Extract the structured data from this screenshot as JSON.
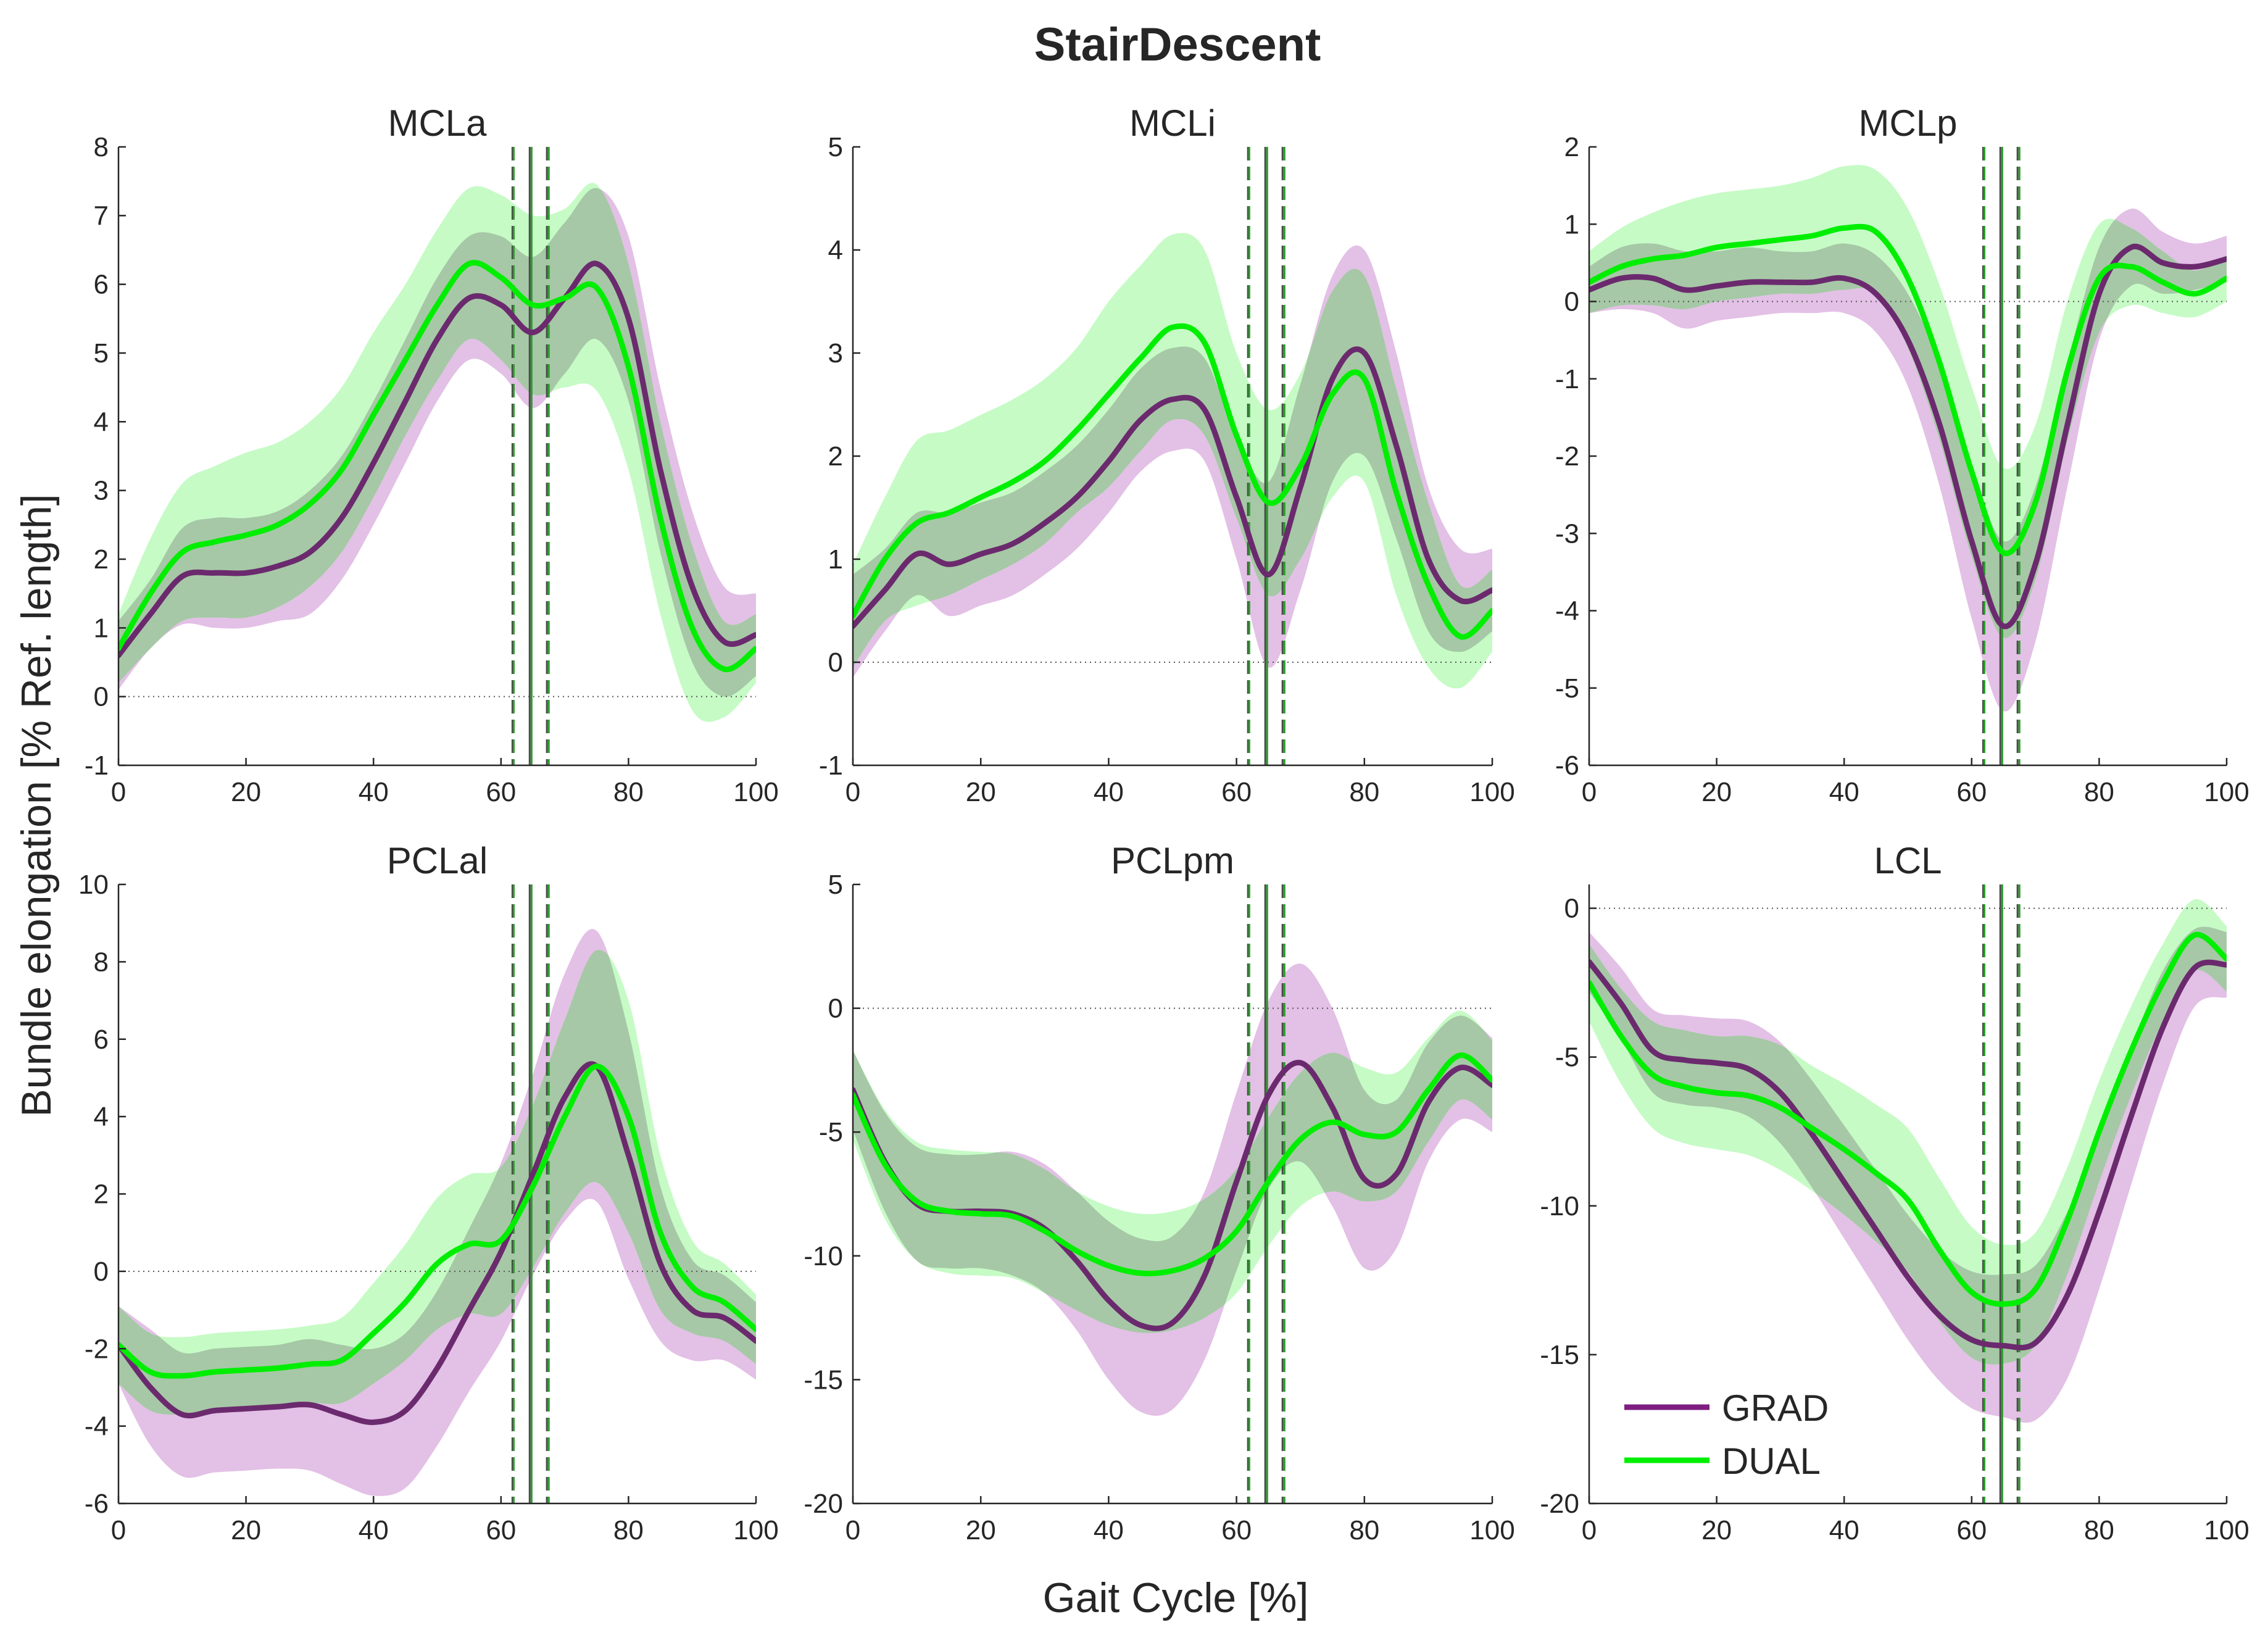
{
  "figure": {
    "title": "StairDescent",
    "xlabel": "Gait Cycle [%]",
    "ylabel": "Bundle elongation [% Ref. length]"
  },
  "legend": [
    {
      "name": "GRAD",
      "color": "#7e1e80"
    },
    {
      "name": "DUAL",
      "color": "#00ee00"
    }
  ],
  "colors": {
    "grad_line": "#6b2a6e",
    "grad_band": "#e3c0e6",
    "dual_line": "#00ee00",
    "dual_band": "#c6fbc6",
    "overlap_band": "#a6c8a6",
    "vline_grad": "#4a4a4a",
    "vline_dual": "#2b9e2b"
  },
  "events": {
    "grad": {
      "mean": 64.5,
      "sd_low": 61.8,
      "sd_high": 67.2
    },
    "dual": {
      "mean": 64.8,
      "sd_low": 62.0,
      "sd_high": 67.5
    }
  },
  "chart_data": [
    {
      "type": "line",
      "title": "MCLa",
      "xlim": [
        0,
        100
      ],
      "ylim": [
        -1,
        8
      ],
      "xticks": [
        "0",
        "20",
        "40",
        "60",
        "80",
        "100"
      ],
      "yticks": [
        "-1",
        "0",
        "1",
        "2",
        "3",
        "4",
        "5",
        "6",
        "7",
        "8"
      ],
      "x": [
        0,
        5,
        10,
        15,
        20,
        25,
        30,
        35,
        40,
        45,
        50,
        55,
        60,
        65,
        70,
        75,
        80,
        85,
        90,
        95,
        100
      ],
      "series": [
        {
          "name": "GRAD",
          "values": [
            0.6,
            1.2,
            1.75,
            1.8,
            1.8,
            1.9,
            2.1,
            2.6,
            3.4,
            4.3,
            5.2,
            5.8,
            5.7,
            5.3,
            5.8,
            6.3,
            5.5,
            3.3,
            1.6,
            0.8,
            0.9
          ],
          "sd": [
            0.5,
            0.5,
            0.7,
            0.8,
            0.8,
            0.8,
            0.9,
            0.9,
            0.9,
            0.9,
            0.9,
            0.9,
            1.0,
            1.1,
            1.1,
            1.1,
            1.2,
            1.2,
            1.1,
            0.8,
            0.6
          ]
        },
        {
          "name": "DUAL",
          "values": [
            0.7,
            1.5,
            2.1,
            2.25,
            2.35,
            2.5,
            2.8,
            3.3,
            4.1,
            4.9,
            5.7,
            6.3,
            6.1,
            5.7,
            5.8,
            5.95,
            4.8,
            2.6,
            1.0,
            0.4,
            0.7
          ],
          "sd": [
            0.5,
            0.8,
            1.0,
            1.1,
            1.2,
            1.2,
            1.2,
            1.2,
            1.2,
            1.1,
            1.1,
            1.1,
            1.2,
            1.3,
            1.3,
            1.5,
            1.5,
            1.4,
            1.2,
            0.7,
            0.5
          ]
        }
      ]
    },
    {
      "type": "line",
      "title": "MCLi",
      "xlim": [
        0,
        100
      ],
      "ylim": [
        -1,
        5
      ],
      "xticks": [
        "0",
        "20",
        "40",
        "60",
        "80",
        "100"
      ],
      "yticks": [
        "-1",
        "0",
        "1",
        "2",
        "3",
        "4",
        "5"
      ],
      "x": [
        0,
        5,
        10,
        15,
        20,
        25,
        30,
        35,
        40,
        45,
        50,
        55,
        60,
        65,
        70,
        75,
        80,
        85,
        90,
        95,
        100
      ],
      "series": [
        {
          "name": "GRAD",
          "values": [
            0.35,
            0.7,
            1.05,
            0.95,
            1.05,
            1.15,
            1.35,
            1.6,
            1.95,
            2.35,
            2.55,
            2.45,
            1.6,
            0.85,
            1.7,
            2.75,
            3.0,
            2.1,
            1.0,
            0.6,
            0.7
          ],
          "sd": [
            0.5,
            0.4,
            0.4,
            0.5,
            0.5,
            0.5,
            0.5,
            0.5,
            0.5,
            0.5,
            0.5,
            0.5,
            0.6,
            0.9,
            1.0,
            1.0,
            1.0,
            0.9,
            0.7,
            0.5,
            0.4
          ]
        },
        {
          "name": "DUAL",
          "values": [
            0.45,
            1.0,
            1.35,
            1.45,
            1.6,
            1.75,
            1.95,
            2.25,
            2.6,
            2.95,
            3.25,
            3.1,
            2.2,
            1.55,
            1.9,
            2.6,
            2.75,
            1.65,
            0.75,
            0.25,
            0.5
          ],
          "sd": [
            0.5,
            0.6,
            0.8,
            0.8,
            0.8,
            0.8,
            0.8,
            0.8,
            0.9,
            0.9,
            0.9,
            0.9,
            0.8,
            0.9,
            0.9,
            1.0,
            1.0,
            1.0,
            0.8,
            0.5,
            0.4
          ]
        }
      ]
    },
    {
      "type": "line",
      "title": "MCLp",
      "xlim": [
        0,
        100
      ],
      "ylim": [
        -6,
        2
      ],
      "xticks": [
        "0",
        "20",
        "40",
        "60",
        "80",
        "100"
      ],
      "yticks": [
        "-6",
        "-5",
        "-4",
        "-3",
        "-2",
        "-1",
        "0",
        "1",
        "2"
      ],
      "x": [
        0,
        5,
        10,
        15,
        20,
        25,
        30,
        35,
        40,
        45,
        50,
        55,
        60,
        65,
        70,
        75,
        80,
        85,
        90,
        95,
        100
      ],
      "series": [
        {
          "name": "GRAD",
          "values": [
            0.15,
            0.3,
            0.3,
            0.15,
            0.2,
            0.25,
            0.25,
            0.25,
            0.3,
            0.1,
            -0.5,
            -1.6,
            -3.1,
            -4.2,
            -3.4,
            -1.6,
            0.1,
            0.7,
            0.5,
            0.45,
            0.55
          ],
          "sd": [
            0.3,
            0.4,
            0.45,
            0.5,
            0.45,
            0.45,
            0.4,
            0.4,
            0.45,
            0.5,
            0.6,
            0.8,
            1.0,
            1.1,
            1.0,
            0.8,
            0.6,
            0.5,
            0.4,
            0.3,
            0.3
          ]
        },
        {
          "name": "DUAL",
          "values": [
            0.25,
            0.45,
            0.55,
            0.6,
            0.7,
            0.75,
            0.8,
            0.85,
            0.95,
            0.9,
            0.3,
            -0.8,
            -2.2,
            -3.25,
            -2.6,
            -0.9,
            0.3,
            0.45,
            0.25,
            0.1,
            0.3
          ],
          "sd": [
            0.4,
            0.5,
            0.6,
            0.7,
            0.7,
            0.7,
            0.7,
            0.75,
            0.8,
            0.8,
            0.9,
            1.0,
            1.1,
            1.1,
            1.0,
            0.9,
            0.7,
            0.5,
            0.4,
            0.3,
            0.3
          ]
        }
      ]
    },
    {
      "type": "line",
      "title": "PCLal",
      "xlim": [
        0,
        100
      ],
      "ylim": [
        -6,
        10
      ],
      "xticks": [
        "0",
        "20",
        "40",
        "60",
        "80",
        "100"
      ],
      "yticks": [
        "-6",
        "-4",
        "-2",
        "0",
        "2",
        "4",
        "6",
        "8",
        "10"
      ],
      "x": [
        0,
        5,
        10,
        15,
        20,
        25,
        30,
        35,
        40,
        45,
        50,
        55,
        60,
        65,
        70,
        75,
        80,
        85,
        90,
        95,
        100
      ],
      "series": [
        {
          "name": "GRAD",
          "values": [
            -1.9,
            -3.0,
            -3.7,
            -3.6,
            -3.55,
            -3.5,
            -3.45,
            -3.7,
            -3.9,
            -3.6,
            -2.5,
            -1.0,
            0.5,
            2.5,
            4.5,
            5.3,
            3.0,
            0.2,
            -1.0,
            -1.2,
            -1.8
          ],
          "sd": [
            1.0,
            1.5,
            1.6,
            1.6,
            1.6,
            1.6,
            1.7,
            1.8,
            1.9,
            2.0,
            2.0,
            2.1,
            2.3,
            2.6,
            3.2,
            3.5,
            3.2,
            2.0,
            1.3,
            1.1,
            1.0
          ]
        },
        {
          "name": "DUAL",
          "values": [
            -1.9,
            -2.6,
            -2.7,
            -2.6,
            -2.55,
            -2.5,
            -2.4,
            -2.3,
            -1.6,
            -0.8,
            0.2,
            0.7,
            0.8,
            2.2,
            4.0,
            5.3,
            4.0,
            1.0,
            -0.4,
            -0.8,
            -1.5
          ],
          "sd": [
            1.0,
            1.0,
            1.0,
            1.0,
            1.0,
            1.0,
            1.0,
            1.1,
            1.3,
            1.5,
            1.7,
            1.8,
            1.9,
            2.1,
            2.5,
            3.0,
            3.0,
            2.0,
            1.2,
            1.0,
            0.9
          ]
        }
      ]
    },
    {
      "type": "line",
      "title": "PCLpm",
      "xlim": [
        0,
        100
      ],
      "ylim": [
        -20,
        5
      ],
      "xticks": [
        "0",
        "20",
        "40",
        "60",
        "80",
        "100"
      ],
      "yticks": [
        "-20",
        "-15",
        "-10",
        "-5",
        "0",
        "5"
      ],
      "x": [
        0,
        5,
        10,
        15,
        20,
        25,
        30,
        35,
        40,
        45,
        50,
        55,
        60,
        65,
        70,
        75,
        80,
        85,
        90,
        95,
        100
      ],
      "series": [
        {
          "name": "GRAD",
          "values": [
            -3.3,
            -6.2,
            -7.9,
            -8.2,
            -8.2,
            -8.3,
            -8.9,
            -10.2,
            -11.8,
            -12.8,
            -12.7,
            -10.8,
            -7.0,
            -3.5,
            -2.2,
            -4.0,
            -6.9,
            -6.7,
            -3.8,
            -2.4,
            -3.1
          ],
          "sd": [
            1.6,
            2.0,
            2.3,
            2.3,
            2.3,
            2.5,
            2.6,
            2.8,
            3.2,
            3.5,
            3.5,
            3.4,
            3.6,
            3.8,
            4.0,
            4.0,
            3.6,
            3.0,
            2.4,
            2.1,
            1.9
          ]
        },
        {
          "name": "DUAL",
          "values": [
            -3.5,
            -6.3,
            -7.8,
            -8.2,
            -8.3,
            -8.4,
            -9.0,
            -9.8,
            -10.4,
            -10.7,
            -10.6,
            -10.1,
            -9.0,
            -7.0,
            -5.3,
            -4.6,
            -5.1,
            -5.0,
            -3.3,
            -1.9,
            -2.9
          ],
          "sd": [
            1.8,
            2.2,
            2.4,
            2.5,
            2.5,
            2.5,
            2.5,
            2.4,
            2.4,
            2.4,
            2.4,
            2.4,
            2.5,
            2.6,
            2.7,
            2.8,
            2.7,
            2.4,
            2.1,
            1.8,
            1.6
          ]
        }
      ]
    },
    {
      "type": "line",
      "title": "LCL",
      "xlim": [
        0,
        100
      ],
      "ylim": [
        -20,
        0.8
      ],
      "xticks": [
        "0",
        "20",
        "40",
        "60",
        "80",
        "100"
      ],
      "yticks": [
        "-20",
        "-15",
        "-10",
        "-5",
        "0"
      ],
      "x": [
        0,
        5,
        10,
        15,
        20,
        25,
        30,
        35,
        40,
        45,
        50,
        55,
        60,
        65,
        70,
        75,
        80,
        85,
        90,
        95,
        100
      ],
      "series": [
        {
          "name": "GRAD",
          "values": [
            -1.8,
            -3.2,
            -4.8,
            -5.1,
            -5.2,
            -5.4,
            -6.2,
            -7.6,
            -9.2,
            -10.8,
            -12.4,
            -13.7,
            -14.5,
            -14.7,
            -14.6,
            -13.0,
            -10.2,
            -7.0,
            -4.0,
            -2.0,
            -1.9
          ],
          "sd": [
            1.0,
            1.2,
            1.4,
            1.5,
            1.5,
            1.6,
            1.7,
            1.8,
            1.9,
            2.0,
            2.1,
            2.2,
            2.3,
            2.4,
            2.6,
            2.8,
            2.6,
            2.3,
            1.9,
            1.3,
            1.1
          ]
        },
        {
          "name": "DUAL",
          "values": [
            -2.5,
            -4.3,
            -5.6,
            -6.0,
            -6.2,
            -6.3,
            -6.7,
            -7.4,
            -8.1,
            -8.9,
            -9.8,
            -11.5,
            -12.9,
            -13.3,
            -12.8,
            -10.5,
            -7.5,
            -4.8,
            -2.5,
            -0.9,
            -1.7
          ],
          "sd": [
            1.3,
            1.6,
            1.8,
            1.9,
            1.9,
            2.0,
            2.1,
            2.1,
            2.2,
            2.3,
            2.4,
            2.4,
            2.2,
            2.0,
            1.9,
            1.8,
            1.7,
            1.5,
            1.3,
            1.2,
            1.1
          ]
        }
      ]
    }
  ]
}
